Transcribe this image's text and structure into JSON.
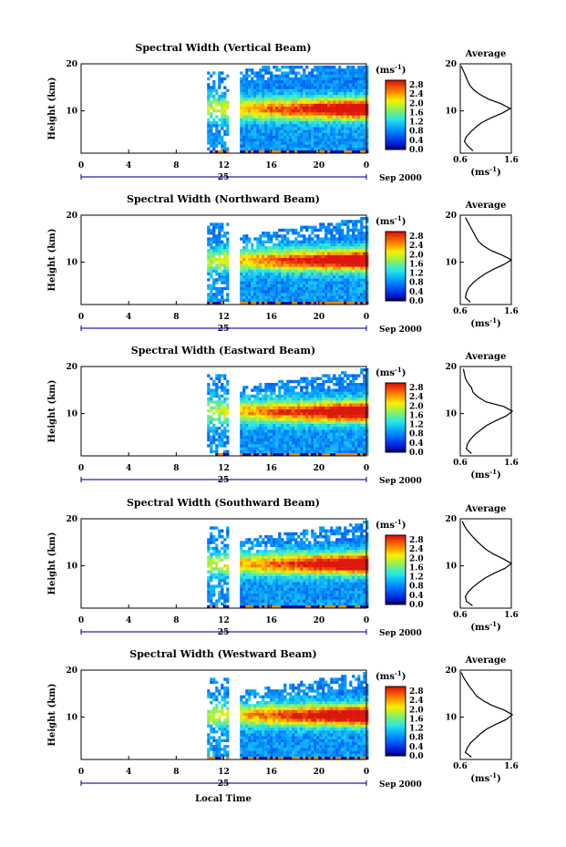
{
  "figure": {
    "xlabel": "Local Time",
    "date_label": "Sep 2000",
    "day_label": "25",
    "colorbar_unit": "(ms",
    "colorbar_unit_sup": "-1",
    "colorbar_unit_close": ")",
    "colorbar_ticks": [
      "2.8",
      "2.4",
      "2.0",
      "1.6",
      "1.2",
      "0.8",
      "0.4",
      "0.0"
    ],
    "avg_title": "Average",
    "avg_unit": "(ms",
    "avg_unit_sup": "-1",
    "avg_unit_close": ")",
    "colors": {
      "low": "#1e2a7a",
      "mid": "#26a8e6",
      "high": "#e8281e",
      "frame": "#000000",
      "axis_marker": "#2222aa"
    }
  },
  "chart_data": [
    {
      "type": "heatmap",
      "title": "Spectral Width (Vertical Beam)",
      "xlabel": "Local Time",
      "ylabel": "Height (km)",
      "x_ticks": [
        "0",
        "4",
        "8",
        "12",
        "16",
        "20",
        "0"
      ],
      "y_ticks": [
        "20",
        "10"
      ],
      "xlim": [
        0,
        24
      ],
      "ylim": [
        1,
        20
      ],
      "data_gap_local_time": [
        12.3,
        13.2
      ],
      "data_start_local_time": 10.6,
      "colorbar": {
        "unit": "(ms-1)",
        "range": [
          0.0,
          3.0
        ],
        "ticks": [
          2.8,
          2.4,
          2.0,
          1.6,
          1.2,
          0.8,
          0.4,
          0.0
        ]
      },
      "average_profile": {
        "title": "Average",
        "xlabel": "(ms-1)",
        "x_ticks": [
          "0.6",
          "1.6"
        ],
        "y_ticks": [
          "20",
          "10"
        ],
        "xlim": [
          0.6,
          1.6
        ],
        "height_km": [
          1.5,
          2.5,
          3.5,
          4.5,
          5.5,
          6.5,
          7.5,
          8.5,
          9.5,
          10.5,
          11.5,
          12.5,
          13.5,
          14.5,
          15.5,
          16.5,
          17.5,
          18.5,
          19.5
        ],
        "width_ms": [
          0.85,
          0.75,
          0.68,
          0.72,
          0.8,
          0.9,
          1.02,
          1.2,
          1.42,
          1.58,
          1.4,
          1.15,
          0.98,
          0.86,
          0.78,
          0.74,
          0.7,
          0.66,
          0.62
        ]
      }
    },
    {
      "type": "heatmap",
      "title": "Spectral Width (Northward Beam)",
      "xlabel": "Local Time",
      "ylabel": "Height (km)",
      "x_ticks": [
        "0",
        "4",
        "8",
        "12",
        "16",
        "20",
        "0"
      ],
      "y_ticks": [
        "20",
        "10"
      ],
      "xlim": [
        0,
        24
      ],
      "ylim": [
        1,
        20
      ],
      "data_gap_local_time": [
        12.3,
        13.2
      ],
      "data_start_local_time": 10.6,
      "colorbar": {
        "unit": "(ms-1)",
        "range": [
          0.0,
          3.0
        ],
        "ticks": [
          2.8,
          2.4,
          2.0,
          1.6,
          1.2,
          0.8,
          0.4,
          0.0
        ]
      },
      "average_profile": {
        "title": "Average",
        "xlabel": "(ms-1)",
        "x_ticks": [
          "0.6",
          "1.6"
        ],
        "y_ticks": [
          "20",
          "10"
        ],
        "xlim": [
          0.6,
          1.6
        ],
        "height_km": [
          1.5,
          2.5,
          3.5,
          4.5,
          5.5,
          6.5,
          7.5,
          8.5,
          9.5,
          10.5,
          11.5,
          12.5,
          13.5,
          14.5,
          15.5,
          16.5,
          17.5,
          18.5,
          19.5
        ],
        "width_ms": [
          0.8,
          0.7,
          0.72,
          0.76,
          0.84,
          0.95,
          1.08,
          1.25,
          1.45,
          1.6,
          1.42,
          1.2,
          1.05,
          0.95,
          0.9,
          0.85,
          0.8,
          0.75,
          0.7
        ]
      }
    },
    {
      "type": "heatmap",
      "title": "Spectral Width (Eastward Beam)",
      "xlabel": "Local Time",
      "ylabel": "Height (km)",
      "x_ticks": [
        "0",
        "4",
        "8",
        "12",
        "16",
        "20",
        "0"
      ],
      "y_ticks": [
        "20",
        "10"
      ],
      "xlim": [
        0,
        24
      ],
      "ylim": [
        1,
        20
      ],
      "data_gap_local_time": [
        12.3,
        13.2
      ],
      "data_start_local_time": 10.6,
      "colorbar": {
        "unit": "(ms-1)",
        "range": [
          0.0,
          3.0
        ],
        "ticks": [
          2.8,
          2.4,
          2.0,
          1.6,
          1.2,
          0.8,
          0.4,
          0.0
        ]
      },
      "average_profile": {
        "title": "Average",
        "xlabel": "(ms-1)",
        "x_ticks": [
          "0.6",
          "1.6"
        ],
        "y_ticks": [
          "20",
          "10"
        ],
        "xlim": [
          0.6,
          1.6
        ],
        "height_km": [
          1.5,
          2.5,
          3.5,
          4.5,
          5.5,
          6.5,
          7.5,
          8.5,
          9.5,
          10.5,
          11.5,
          12.5,
          13.5,
          14.5,
          15.5,
          16.5,
          17.5,
          18.5,
          19.5
        ],
        "width_ms": [
          0.82,
          0.72,
          0.74,
          0.8,
          0.88,
          1.0,
          1.12,
          1.3,
          1.5,
          1.62,
          1.45,
          1.1,
          0.95,
          0.85,
          0.82,
          0.75,
          0.7,
          0.68,
          0.66
        ]
      }
    },
    {
      "type": "heatmap",
      "title": "Spectral Width (Southward Beam)",
      "xlabel": "Local Time",
      "ylabel": "Height (km)",
      "x_ticks": [
        "0",
        "4",
        "8",
        "12",
        "16",
        "20",
        "0"
      ],
      "y_ticks": [
        "20",
        "10"
      ],
      "xlim": [
        0,
        24
      ],
      "ylim": [
        1,
        20
      ],
      "data_gap_local_time": [
        12.3,
        13.2
      ],
      "data_start_local_time": 10.6,
      "colorbar": {
        "unit": "(ms-1)",
        "range": [
          0.0,
          3.0
        ],
        "ticks": [
          2.8,
          2.4,
          2.0,
          1.6,
          1.2,
          0.8,
          0.4,
          0.0
        ]
      },
      "average_profile": {
        "title": "Average",
        "xlabel": "(ms-1)",
        "x_ticks": [
          "0.6",
          "1.6"
        ],
        "y_ticks": [
          "20",
          "10"
        ],
        "xlim": [
          0.6,
          1.6
        ],
        "height_km": [
          1.5,
          2.5,
          3.5,
          4.5,
          5.5,
          6.5,
          7.5,
          8.5,
          9.5,
          10.5,
          11.5,
          12.5,
          13.5,
          14.5,
          15.5,
          16.5,
          17.5,
          18.5,
          19.5
        ],
        "width_ms": [
          0.84,
          0.72,
          0.7,
          0.76,
          0.85,
          0.97,
          1.1,
          1.28,
          1.48,
          1.6,
          1.44,
          1.25,
          1.1,
          1.0,
          0.9,
          0.82,
          0.74,
          0.68,
          0.64
        ]
      }
    },
    {
      "type": "heatmap",
      "title": "Spectral Width (Westward Beam)",
      "xlabel": "Local Time",
      "ylabel": "Height (km)",
      "x_ticks": [
        "0",
        "4",
        "8",
        "12",
        "16",
        "20",
        "0"
      ],
      "y_ticks": [
        "20",
        "10"
      ],
      "xlim": [
        0,
        24
      ],
      "ylim": [
        1,
        20
      ],
      "data_gap_local_time": [
        12.3,
        13.2
      ],
      "data_start_local_time": 10.6,
      "colorbar": {
        "unit": "(ms-1)",
        "range": [
          0.0,
          3.0
        ],
        "ticks": [
          2.8,
          2.4,
          2.0,
          1.6,
          1.2,
          0.8,
          0.4,
          0.0
        ]
      },
      "average_profile": {
        "title": "Average",
        "xlabel": "(ms-1)",
        "x_ticks": [
          "0.6",
          "1.6"
        ],
        "y_ticks": [
          "20",
          "10"
        ],
        "xlim": [
          0.6,
          1.6
        ],
        "height_km": [
          1.5,
          2.5,
          3.5,
          4.5,
          5.5,
          6.5,
          7.5,
          8.5,
          9.5,
          10.5,
          11.5,
          12.5,
          13.5,
          14.5,
          15.5,
          16.5,
          17.5,
          18.5,
          19.5
        ],
        "width_ms": [
          0.82,
          0.7,
          0.74,
          0.8,
          0.9,
          1.0,
          1.12,
          1.3,
          1.5,
          1.62,
          1.46,
          1.22,
          1.05,
          0.92,
          0.85,
          0.78,
          0.72,
          0.66,
          0.62
        ]
      }
    }
  ]
}
